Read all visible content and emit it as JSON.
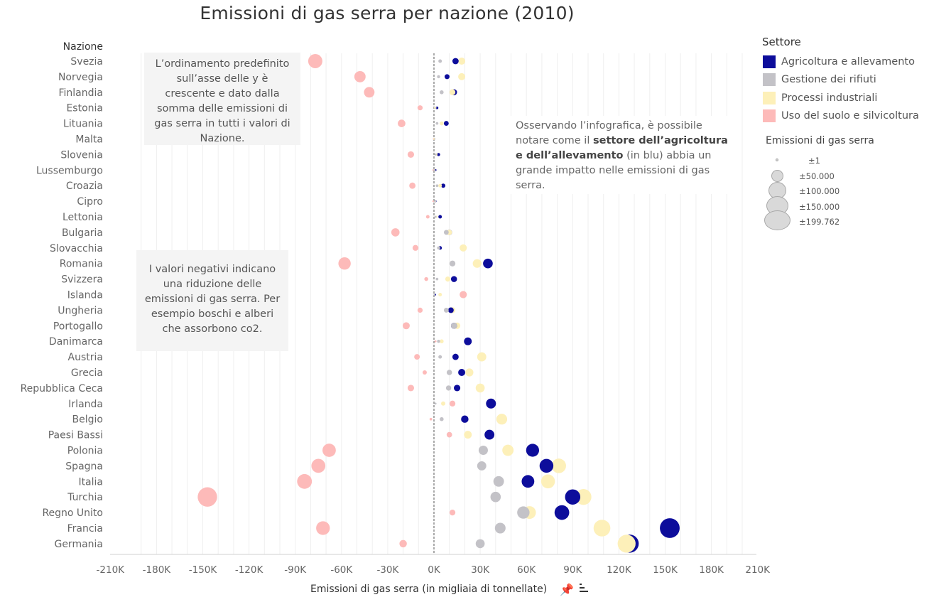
{
  "title": "Emissioni di gas serra per nazione (2010)",
  "y_header": "Nazione",
  "x_title": "Emissioni di gas serra (in migliaia di tonnellate)",
  "icons": {
    "pin": "pin-icon",
    "sort": "sort-descending-icon"
  },
  "notes": {
    "order": "L’ordinamento predefinito sull’asse delle y è crescente e dato dalla somma delle emissioni di gas serra in tutti i valori di Nazione.",
    "negative": "I valori negativi indicano una riduzione delle emissioni di gas serra. Per esempio boschi e alberi che assorbono co2.",
    "insight_pre": "Osservando l’infografica, è possibile notare come il ",
    "insight_bold": "settore dell’agricoltura e dell’allevamento",
    "insight_post": " (in blu) abbia un grande impatto nelle emissioni di gas serra."
  },
  "legend": {
    "title": "Settore",
    "items": [
      {
        "label": "Agricoltura e allevamento",
        "color": "#0d0d9b"
      },
      {
        "label": "Gestione dei rifiuti",
        "color": "#c3c2c7"
      },
      {
        "label": "Processi industriali",
        "color": "#fdf0b9"
      },
      {
        "label": "Uso del suolo e silvicoltura",
        "color": "#fdbab9"
      }
    ],
    "size_title": "Emissioni di gas serra",
    "size_items": [
      {
        "label": "±1",
        "value": 1
      },
      {
        "label": "±50.000",
        "value": 50000
      },
      {
        "label": "±100.000",
        "value": 100000
      },
      {
        "label": "±150.000",
        "value": 150000
      },
      {
        "label": "±199.762",
        "value": 199762
      }
    ]
  },
  "chart_data": {
    "type": "scatter",
    "title": "Emissioni di gas serra per nazione (2010)",
    "xlabel": "Emissioni di gas serra (in migliaia di tonnellate)",
    "ylabel": "Nazione",
    "xlim": [
      -210000,
      210000
    ],
    "x_ticks": [
      -210000,
      -180000,
      -150000,
      -120000,
      -90000,
      -60000,
      -30000,
      0,
      30000,
      60000,
      90000,
      120000,
      150000,
      180000,
      210000
    ],
    "x_tick_labels": [
      "-210K",
      "-180K",
      "-150K",
      "-120K",
      "-90K",
      "-60K",
      "-30K",
      "0K",
      "30K",
      "60K",
      "90K",
      "120K",
      "150K",
      "180K",
      "210K"
    ],
    "grid": "vertical",
    "legend_position": "right",
    "size_encoding": "absolute value of emissions",
    "categories": [
      "Svezia",
      "Norvegia",
      "Finlandia",
      "Estonia",
      "Lituania",
      "Malta",
      "Slovenia",
      "Lussemburgo",
      "Croazia",
      "Cipro",
      "Lettonia",
      "Bulgaria",
      "Slovacchia",
      "Romania",
      "Svizzera",
      "Islanda",
      "Ungheria",
      "Portogallo",
      "Danimarca",
      "Austria",
      "Grecia",
      "Repubblica Ceca",
      "Irlanda",
      "Belgio",
      "Paesi Bassi",
      "Polonia",
      "Spagna",
      "Italia",
      "Turchia",
      "Regno Unito",
      "Francia",
      "Germania"
    ],
    "series": [
      {
        "name": "Agricoltura e allevamento",
        "color": "#0d0d9b",
        "values": [
          14000,
          8500,
          13000,
          2000,
          8000,
          300,
          3000,
          1000,
          6000,
          1000,
          4000,
          10000,
          4000,
          35000,
          13000,
          800,
          11000,
          13000,
          22000,
          14000,
          18000,
          15000,
          37000,
          20000,
          36000,
          64000,
          73000,
          61000,
          90000,
          83000,
          153000,
          127000
        ]
      },
      {
        "name": "Gestione dei rifiuti",
        "color": "#c3c2c7",
        "values": [
          4000,
          3000,
          5000,
          1000,
          2000,
          300,
          1000,
          200,
          2000,
          600,
          1000,
          8000,
          3000,
          12000,
          2000,
          300,
          8000,
          13000,
          3000,
          4000,
          10000,
          9500,
          1000,
          5000,
          10000,
          32000,
          31000,
          42000,
          40000,
          58000,
          43000,
          30000
        ]
      },
      {
        "name": "Processi industriali",
        "color": "#fdf0b9",
        "values": [
          18000,
          18000,
          12000,
          500,
          5000,
          100,
          1500,
          500,
          4000,
          800,
          1500,
          10000,
          19000,
          28000,
          9000,
          4000,
          12000,
          15000,
          5000,
          31000,
          23000,
          30000,
          6000,
          44000,
          22000,
          48000,
          81000,
          74000,
          97000,
          62000,
          109000,
          125000
        ]
      },
      {
        "name": "Uso del suolo e silvicoltura",
        "color": "#fdbab9",
        "values": [
          -77000,
          -48000,
          -42000,
          -9000,
          -21000,
          -200,
          -15000,
          -500,
          -14000,
          -500,
          -4000,
          -25000,
          -12000,
          -58000,
          -5000,
          19000,
          -9000,
          -18000,
          1000,
          -11000,
          -6000,
          -15000,
          12000,
          -2000,
          10000,
          -68000,
          -75000,
          -84000,
          -147000,
          12000,
          -72000,
          -20000
        ]
      }
    ]
  }
}
